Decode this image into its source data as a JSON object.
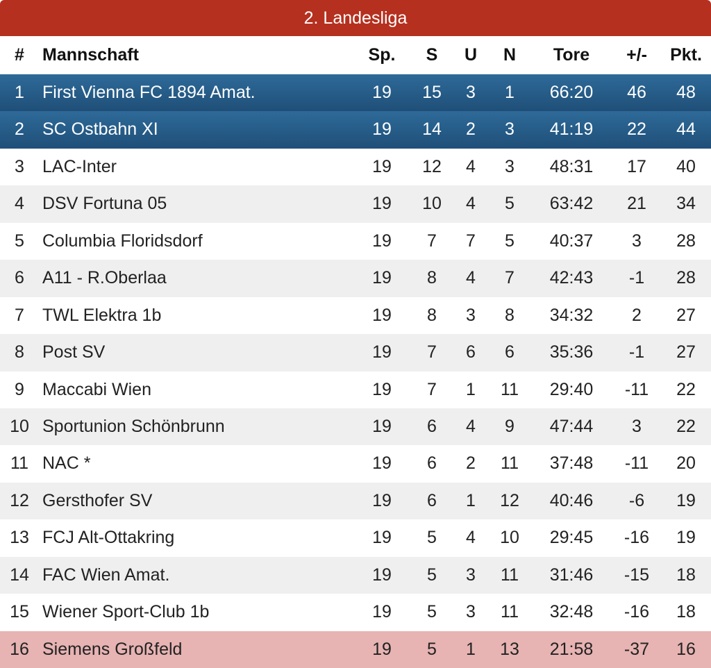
{
  "header": {
    "title": "2. Landesliga"
  },
  "table": {
    "columns": [
      "#",
      "Mannschaft",
      "Sp.",
      "S",
      "U",
      "N",
      "Tore",
      "+/-",
      "Pkt."
    ],
    "rows": [
      [
        "1",
        "First Vienna FC 1894 Amat.",
        "19",
        "15",
        "3",
        "1",
        "66:20",
        "46",
        "48"
      ],
      [
        "2",
        "SC Ostbahn XI",
        "19",
        "14",
        "2",
        "3",
        "41:19",
        "22",
        "44"
      ],
      [
        "3",
        "LAC-Inter",
        "19",
        "12",
        "4",
        "3",
        "48:31",
        "17",
        "40"
      ],
      [
        "4",
        "DSV Fortuna 05",
        "19",
        "10",
        "4",
        "5",
        "63:42",
        "21",
        "34"
      ],
      [
        "5",
        "Columbia Floridsdorf",
        "19",
        "7",
        "7",
        "5",
        "40:37",
        "3",
        "28"
      ],
      [
        "6",
        "A11 - R.Oberlaa",
        "19",
        "8",
        "4",
        "7",
        "42:43",
        "-1",
        "28"
      ],
      [
        "7",
        "TWL Elektra 1b",
        "19",
        "8",
        "3",
        "8",
        "34:32",
        "2",
        "27"
      ],
      [
        "8",
        "Post SV",
        "19",
        "7",
        "6",
        "6",
        "35:36",
        "-1",
        "27"
      ],
      [
        "9",
        "Maccabi Wien",
        "19",
        "7",
        "1",
        "11",
        "29:40",
        "-11",
        "22"
      ],
      [
        "10",
        "Sportunion Schönbrunn",
        "19",
        "6",
        "4",
        "9",
        "47:44",
        "3",
        "22"
      ],
      [
        "11",
        "NAC *",
        "19",
        "6",
        "2",
        "11",
        "37:48",
        "-11",
        "20"
      ],
      [
        "12",
        "Gersthofer SV",
        "19",
        "6",
        "1",
        "12",
        "40:46",
        "-6",
        "19"
      ],
      [
        "13",
        "FCJ Alt-Ottakring",
        "19",
        "5",
        "4",
        "10",
        "29:45",
        "-16",
        "19"
      ],
      [
        "14",
        "FAC Wien Amat.",
        "19",
        "5",
        "3",
        "11",
        "31:46",
        "-15",
        "18"
      ],
      [
        "15",
        "Wiener Sport-Club 1b",
        "19",
        "5",
        "3",
        "11",
        "32:48",
        "-16",
        "18"
      ],
      [
        "16",
        "Siemens Großfeld",
        "19",
        "5",
        "1",
        "13",
        "21:58",
        "-37",
        "16"
      ]
    ]
  }
}
